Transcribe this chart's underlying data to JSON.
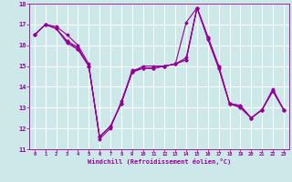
{
  "title": "",
  "xlabel": "Windchill (Refroidissement éolien,°C)",
  "ylabel": "",
  "bg_color": "#cce8e8",
  "grid_color": "#ffffff",
  "line_color": "#990099",
  "xlim": [
    -0.5,
    23.5
  ],
  "ylim": [
    11,
    18
  ],
  "yticks": [
    11,
    12,
    13,
    14,
    15,
    16,
    17,
    18
  ],
  "xticks": [
    0,
    1,
    2,
    3,
    4,
    5,
    6,
    7,
    8,
    9,
    10,
    11,
    12,
    13,
    14,
    15,
    16,
    17,
    18,
    19,
    20,
    21,
    22,
    23
  ],
  "series": [
    [
      16.5,
      17.0,
      16.9,
      16.5,
      16.0,
      15.1,
      11.5,
      12.0,
      13.3,
      14.7,
      15.0,
      15.0,
      15.0,
      15.1,
      17.1,
      17.8,
      16.4,
      15.0,
      13.2,
      13.1,
      12.5,
      12.9,
      13.9,
      12.9
    ],
    [
      16.5,
      17.0,
      16.8,
      16.2,
      15.9,
      15.0,
      11.6,
      12.1,
      13.2,
      14.7,
      14.9,
      14.9,
      15.0,
      15.1,
      15.4,
      17.8,
      16.4,
      15.0,
      13.2,
      13.1,
      12.5,
      12.9,
      13.8,
      12.9
    ],
    [
      16.5,
      17.0,
      16.8,
      16.2,
      15.8,
      15.0,
      11.6,
      12.1,
      13.2,
      14.7,
      14.9,
      14.9,
      15.0,
      15.1,
      15.3,
      17.8,
      16.3,
      14.9,
      13.2,
      13.0,
      12.5,
      12.9,
      13.8,
      12.9
    ],
    [
      16.5,
      17.0,
      16.8,
      16.1,
      15.8,
      15.0,
      11.6,
      12.1,
      13.2,
      14.8,
      14.9,
      14.9,
      15.0,
      15.1,
      15.3,
      17.8,
      16.3,
      14.9,
      13.2,
      13.0,
      12.5,
      12.9,
      13.8,
      12.9
    ]
  ]
}
